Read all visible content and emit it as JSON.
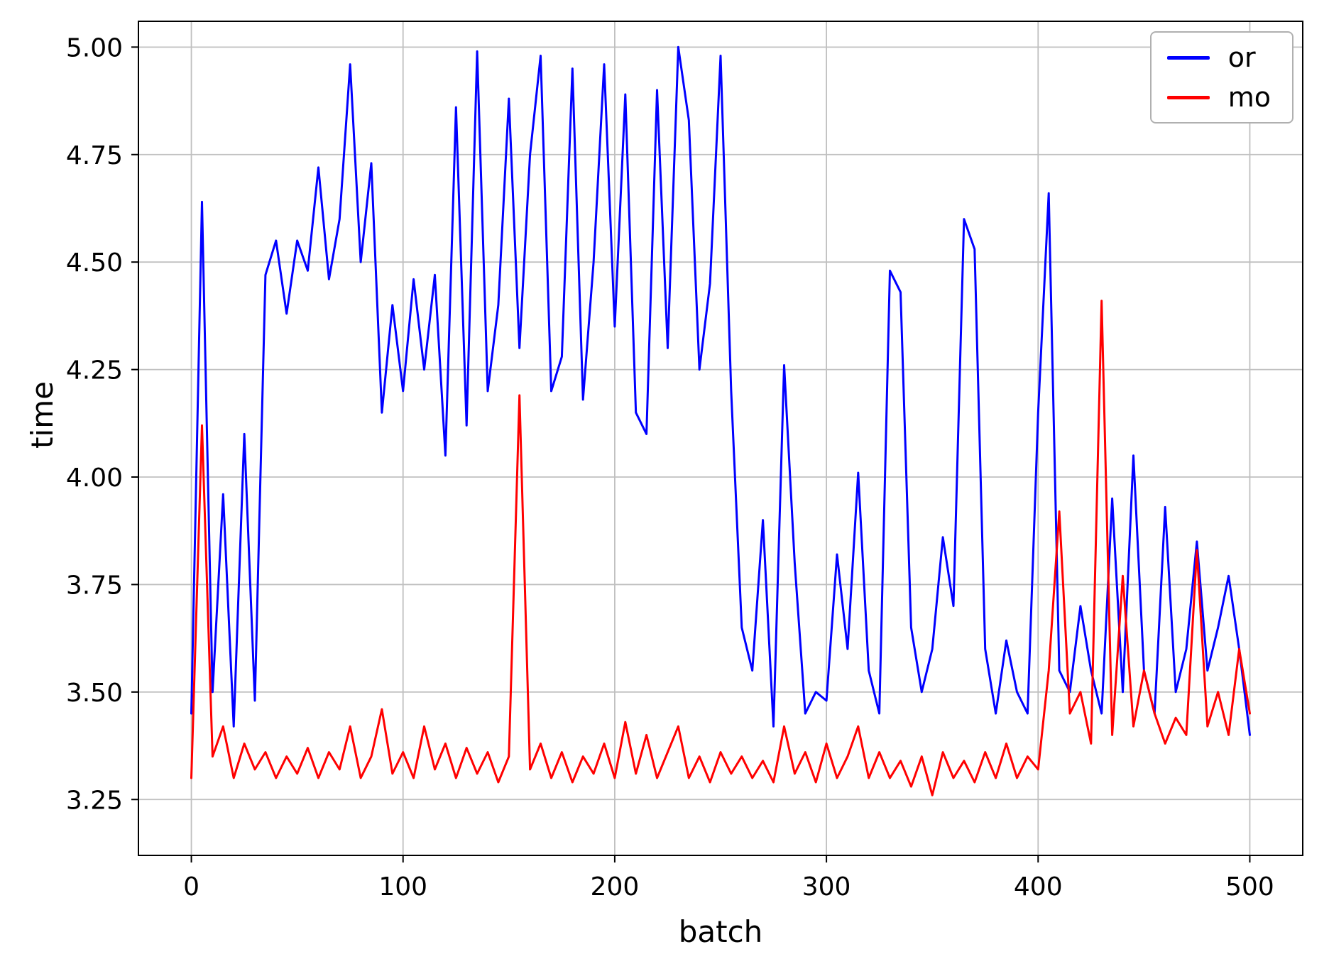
{
  "chart_data": {
    "type": "line",
    "title": "",
    "xlabel": "batch",
    "ylabel": "time",
    "xlim": [
      -25,
      525
    ],
    "ylim": [
      3.12,
      5.06
    ],
    "xticks": [
      0,
      100,
      200,
      300,
      400,
      500
    ],
    "yticks": [
      3.25,
      3.5,
      3.75,
      4.0,
      4.25,
      4.5,
      4.75,
      5.0
    ],
    "grid": true,
    "grid_color": "#c0c0c0",
    "legend_position": "upper right",
    "x": [
      0,
      5,
      10,
      15,
      20,
      25,
      30,
      35,
      40,
      45,
      50,
      55,
      60,
      65,
      70,
      75,
      80,
      85,
      90,
      95,
      100,
      105,
      110,
      115,
      120,
      125,
      130,
      135,
      140,
      145,
      150,
      155,
      160,
      165,
      170,
      175,
      180,
      185,
      190,
      195,
      200,
      205,
      210,
      215,
      220,
      225,
      230,
      235,
      240,
      245,
      250,
      255,
      260,
      265,
      270,
      275,
      280,
      285,
      290,
      295,
      300,
      305,
      310,
      315,
      320,
      325,
      330,
      335,
      340,
      345,
      350,
      355,
      360,
      365,
      370,
      375,
      380,
      385,
      390,
      395,
      400,
      405,
      410,
      415,
      420,
      425,
      430,
      435,
      440,
      445,
      450,
      455,
      460,
      465,
      470,
      475,
      480,
      485,
      490,
      495,
      500
    ],
    "series": [
      {
        "name": "or",
        "color": "#0000ff",
        "values": [
          3.45,
          4.64,
          3.5,
          3.96,
          3.42,
          4.1,
          3.48,
          4.47,
          4.55,
          4.38,
          4.55,
          4.48,
          4.72,
          4.46,
          4.6,
          4.96,
          4.5,
          4.73,
          4.15,
          4.4,
          4.2,
          4.46,
          4.25,
          4.47,
          4.05,
          4.86,
          4.12,
          4.99,
          4.2,
          4.4,
          4.88,
          4.3,
          4.75,
          4.98,
          4.2,
          4.28,
          4.95,
          4.18,
          4.5,
          4.96,
          4.35,
          4.89,
          4.15,
          4.1,
          4.9,
          4.3,
          5.0,
          4.83,
          4.25,
          4.45,
          4.98,
          4.2,
          3.65,
          3.55,
          3.9,
          3.42,
          4.26,
          3.8,
          3.45,
          3.5,
          3.48,
          3.82,
          3.6,
          4.01,
          3.55,
          3.45,
          4.48,
          4.43,
          3.65,
          3.5,
          3.6,
          3.86,
          3.7,
          4.6,
          4.53,
          3.6,
          3.45,
          3.62,
          3.5,
          3.45,
          4.15,
          4.66,
          3.55,
          3.5,
          3.7,
          3.55,
          3.45,
          3.95,
          3.5,
          4.05,
          3.55,
          3.45,
          3.93,
          3.5,
          3.6,
          3.85,
          3.55,
          3.65,
          3.77,
          3.6,
          3.4
        ]
      },
      {
        "name": "mo",
        "color": "#ff0000",
        "values": [
          3.3,
          4.12,
          3.35,
          3.42,
          3.3,
          3.38,
          3.32,
          3.36,
          3.3,
          3.35,
          3.31,
          3.37,
          3.3,
          3.36,
          3.32,
          3.42,
          3.3,
          3.35,
          3.46,
          3.31,
          3.36,
          3.3,
          3.42,
          3.32,
          3.38,
          3.3,
          3.37,
          3.31,
          3.36,
          3.29,
          3.35,
          4.19,
          3.32,
          3.38,
          3.3,
          3.36,
          3.29,
          3.35,
          3.31,
          3.38,
          3.3,
          3.43,
          3.31,
          3.4,
          3.3,
          3.36,
          3.42,
          3.3,
          3.35,
          3.29,
          3.36,
          3.31,
          3.35,
          3.3,
          3.34,
          3.29,
          3.42,
          3.31,
          3.36,
          3.29,
          3.38,
          3.3,
          3.35,
          3.42,
          3.3,
          3.36,
          3.3,
          3.34,
          3.28,
          3.35,
          3.26,
          3.36,
          3.3,
          3.34,
          3.29,
          3.36,
          3.3,
          3.38,
          3.3,
          3.35,
          3.32,
          3.55,
          3.92,
          3.45,
          3.5,
          3.38,
          4.41,
          3.4,
          3.77,
          3.42,
          3.55,
          3.45,
          3.38,
          3.44,
          3.4,
          3.83,
          3.42,
          3.5,
          3.4,
          3.6,
          3.45
        ]
      }
    ]
  }
}
